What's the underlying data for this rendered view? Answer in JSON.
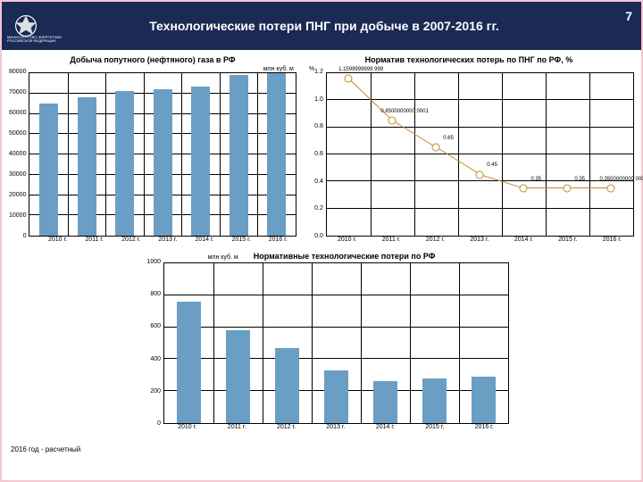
{
  "header": {
    "title": "Технологические потери ПНГ при добыче в 2007-2016 гг.",
    "page_number": "7",
    "ministry_line1": "МИНИСТЕРСТВО ЭНЕРГЕТИКИ",
    "ministry_line2": "РОССИЙСКОЙ ФЕДЕРАЦИИ",
    "header_bg": "#1a2a55"
  },
  "chart1": {
    "type": "bar",
    "title": "Добыча попутного (нефтяного) газа в РФ",
    "y_unit": "млн куб. м",
    "ylim": [
      0,
      80000
    ],
    "ytick_step": 10000,
    "categories": [
      "2010 г.",
      "2011 г.",
      "2012 г.",
      "2013 г.",
      "2014 г.",
      "2015 г.",
      "2016 г."
    ],
    "values": [
      65000,
      68000,
      71000,
      72000,
      73500,
      79000,
      82500
    ],
    "bar_color": "#6a9ec5",
    "grid_color": "#000000",
    "bar_width": 0.5
  },
  "chart2": {
    "type": "line-scatter",
    "title": "Норматив технологических потерь по ПНГ по РФ, %",
    "y_unit": "%",
    "ylim": [
      0,
      1.2
    ],
    "ytick_step": 0.2,
    "categories": [
      "2010 г.",
      "2011 г.",
      "2012 г.",
      "2013 г.",
      "2014 г.",
      "2015 г.",
      "2016 г."
    ],
    "values": [
      1.1599999999999,
      0.850000000000001,
      0.65,
      0.45,
      0.35,
      0.35,
      0.350000000000002
    ],
    "point_labels": [
      "1.1599999999\n999",
      "0.8500000000\n0001",
      "0.65",
      "0.45",
      "0.35",
      "0.35",
      "0.3500000000\n0002"
    ],
    "marker_border": "#c08a2a",
    "marker_fill": "#ffffff",
    "line_color": "#c08a2a",
    "grid_color": "#000000"
  },
  "chart3": {
    "type": "bar",
    "title": "Нормативные технологические потери по РФ",
    "y_unit": "млн куб. м",
    "ylim": [
      0,
      1000
    ],
    "ytick_step": 200,
    "categories": [
      "2010 г.",
      "2011 г.",
      "2012 г.",
      "2013 г.",
      "2014 г.",
      "2015 г.",
      "2016 г."
    ],
    "values": [
      760,
      580,
      470,
      330,
      260,
      280,
      290
    ],
    "bar_color": "#6a9ec5",
    "grid_color": "#000000",
    "bar_width": 0.5
  },
  "footer": {
    "note": "2016 год - расчетный"
  }
}
